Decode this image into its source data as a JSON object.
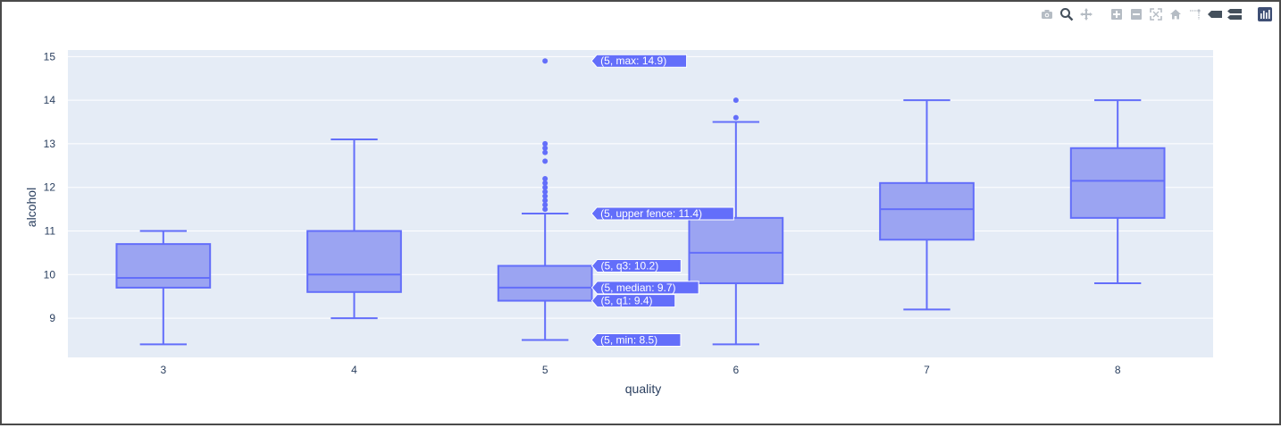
{
  "modebar": {
    "buttons": [
      {
        "name": "camera-icon",
        "group": 1
      },
      {
        "name": "zoom-icon",
        "group": 1
      },
      {
        "name": "pan-icon",
        "group": 1
      },
      {
        "name": "zoom-in-icon",
        "group": 2
      },
      {
        "name": "zoom-out-icon",
        "group": 2
      },
      {
        "name": "autoscale-icon",
        "group": 2
      },
      {
        "name": "home-icon",
        "group": 2
      },
      {
        "name": "spike-lines-icon",
        "group": 2
      },
      {
        "name": "hover-closest-icon",
        "group": 2
      },
      {
        "name": "hover-compare-icon",
        "group": 2
      },
      {
        "name": "plotly-logo-icon",
        "group": 3
      }
    ]
  },
  "colors": {
    "plot_bg": "#e5ecf6",
    "grid": "#ffffff",
    "box_fill": "#9ba4f2",
    "box_line": "#636efa",
    "tick_text": "#2a3f5f"
  },
  "chart_data": {
    "type": "box",
    "xlabel": "quality",
    "ylabel": "alcohol",
    "categories": [
      "3",
      "4",
      "5",
      "6",
      "7",
      "8"
    ],
    "ylim": [
      8.1,
      15.15
    ],
    "yticks": [
      9,
      10,
      11,
      12,
      13,
      14,
      15
    ],
    "grid": true,
    "boxes": [
      {
        "x": "3",
        "min": 8.4,
        "q1": 9.7,
        "median": 9.925,
        "q3": 10.7,
        "max": 11.0,
        "outliers": []
      },
      {
        "x": "4",
        "min": 9.0,
        "q1": 9.6,
        "median": 10.0,
        "q3": 11.0,
        "max": 13.1,
        "outliers": []
      },
      {
        "x": "5",
        "min": 8.5,
        "q1": 9.4,
        "median": 9.7,
        "q3": 10.2,
        "max": 11.4,
        "outliers": [
          11.5,
          11.6,
          11.7,
          11.8,
          11.9,
          12.0,
          12.1,
          12.2,
          12.6,
          12.8,
          12.9,
          13.0,
          14.9
        ]
      },
      {
        "x": "6",
        "min": 8.4,
        "q1": 9.8,
        "median": 10.5,
        "q3": 11.3,
        "max": 13.5,
        "outliers": [
          13.6,
          14.0
        ]
      },
      {
        "x": "7",
        "min": 9.2,
        "q1": 10.8,
        "median": 11.5,
        "q3": 12.1,
        "max": 14.0,
        "outliers": []
      },
      {
        "x": "8",
        "min": 9.8,
        "q1": 11.3,
        "median": 12.15,
        "q3": 12.9,
        "max": 14.0,
        "outliers": []
      }
    ],
    "hover": {
      "category": "5",
      "labels": [
        {
          "key": "max",
          "value": 14.9,
          "text": "(5, max: 14.9)"
        },
        {
          "key": "upper_fence",
          "value": 11.4,
          "text": "(5, upper fence: 11.4)"
        },
        {
          "key": "q3",
          "value": 10.2,
          "text": "(5, q3: 10.2)"
        },
        {
          "key": "median",
          "value": 9.7,
          "text": "(5, median: 9.7)"
        },
        {
          "key": "q1",
          "value": 9.4,
          "text": "(5, q1: 9.4)"
        },
        {
          "key": "min",
          "value": 8.5,
          "text": "(5, min: 8.5)"
        }
      ]
    }
  }
}
